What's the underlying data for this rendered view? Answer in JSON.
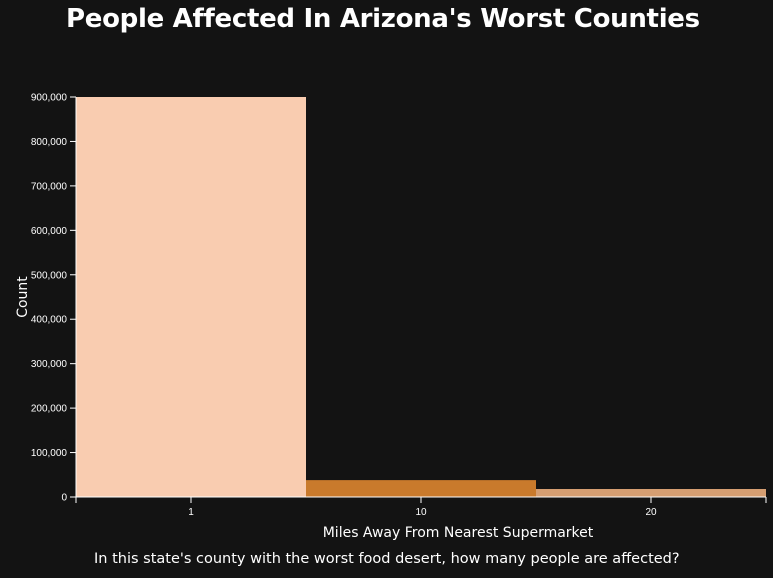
{
  "title": "People Affected In Arizona's Worst Counties",
  "caption": "In this state's county with the worst food desert, how many people are affected?",
  "colors": {
    "background": "#131313",
    "axis": "#ffffff",
    "bars": [
      "#f9ccb0",
      "#c97a2c",
      "#d59e72"
    ]
  },
  "chart_data": {
    "type": "bar",
    "categories": [
      "1",
      "10",
      "20"
    ],
    "values": [
      900000,
      38000,
      18000
    ],
    "xlabel": "Miles Away From Nearest Supermarket",
    "ylabel": "Count",
    "ylim": [
      0,
      900000
    ],
    "yticks": [
      "0",
      "100,000",
      "200,000",
      "300,000",
      "400,000",
      "500,000",
      "600,000",
      "700,000",
      "800,000",
      "900,000"
    ],
    "grid": false,
    "legend": "none"
  }
}
